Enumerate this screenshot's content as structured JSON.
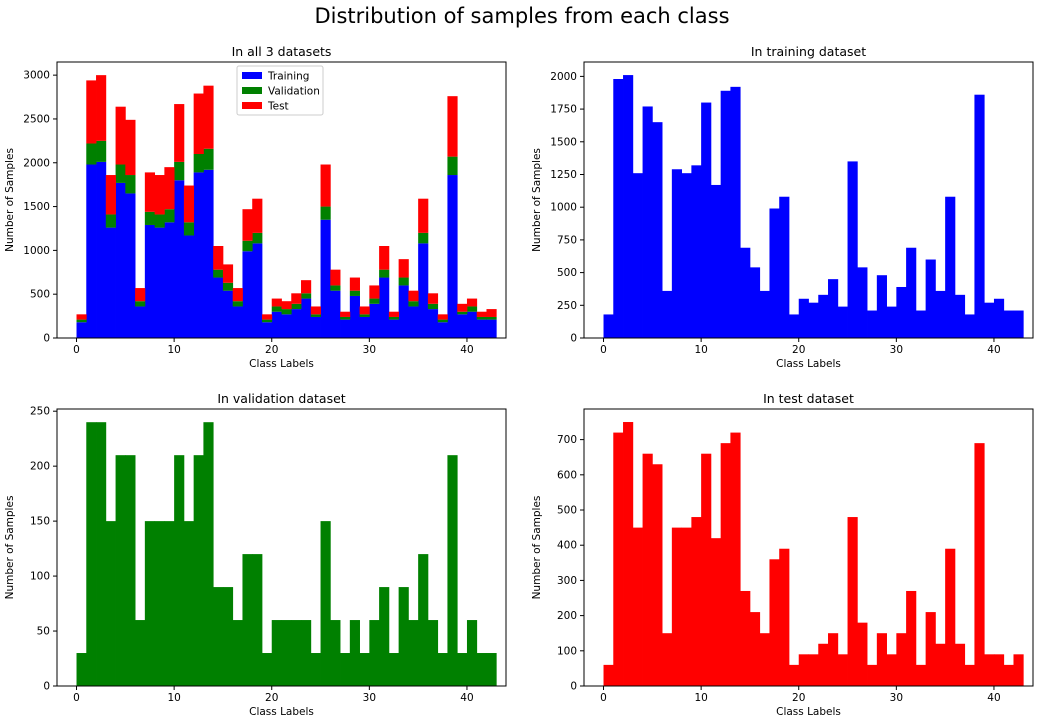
{
  "figure": {
    "suptitle": "Distribution of samples from each class"
  },
  "colors": {
    "training": "#0000ff",
    "validation": "#008000",
    "test": "#ff0000",
    "axes": "#000000",
    "background": "#ffffff"
  },
  "chart_data": [
    {
      "type": "bar",
      "stacked": true,
      "title": "In all 3 datasets",
      "xlabel": "Class Labels",
      "ylabel": "Number of Samples",
      "x": [
        0,
        1,
        2,
        3,
        4,
        5,
        6,
        7,
        8,
        9,
        10,
        11,
        12,
        13,
        14,
        15,
        16,
        17,
        18,
        19,
        20,
        21,
        22,
        23,
        24,
        25,
        26,
        27,
        28,
        29,
        30,
        31,
        32,
        33,
        34,
        35,
        36,
        37,
        38,
        39,
        40,
        41,
        42
      ],
      "xlim": [
        -2,
        44
      ],
      "ylim": [
        0,
        3150
      ],
      "xticks": [
        0,
        10,
        20,
        30,
        40
      ],
      "yticks": [
        0,
        500,
        1000,
        1500,
        2000,
        2500,
        3000
      ],
      "legend": {
        "placement": "top-center",
        "entries": [
          "Training",
          "Validation",
          "Test"
        ]
      },
      "series": [
        {
          "name": "Training",
          "color": "#0000ff",
          "values": [
            180,
            1980,
            2010,
            1260,
            1770,
            1650,
            360,
            1290,
            1260,
            1320,
            1800,
            1170,
            1890,
            1920,
            690,
            540,
            360,
            990,
            1080,
            180,
            300,
            270,
            330,
            450,
            240,
            1350,
            540,
            210,
            480,
            240,
            390,
            690,
            210,
            600,
            360,
            1080,
            330,
            180,
            1860,
            270,
            300,
            210,
            210
          ]
        },
        {
          "name": "Validation",
          "color": "#008000",
          "values": [
            30,
            240,
            240,
            150,
            210,
            210,
            60,
            150,
            150,
            150,
            210,
            150,
            210,
            240,
            90,
            90,
            60,
            120,
            120,
            30,
            60,
            60,
            60,
            60,
            30,
            150,
            60,
            30,
            60,
            30,
            60,
            90,
            30,
            90,
            60,
            120,
            60,
            30,
            210,
            30,
            60,
            30,
            30
          ]
        },
        {
          "name": "Test",
          "color": "#ff0000",
          "values": [
            60,
            720,
            750,
            450,
            660,
            630,
            150,
            450,
            450,
            480,
            660,
            420,
            690,
            720,
            270,
            210,
            150,
            360,
            390,
            60,
            90,
            90,
            120,
            150,
            90,
            480,
            180,
            60,
            150,
            90,
            150,
            270,
            60,
            210,
            120,
            390,
            120,
            60,
            690,
            90,
            90,
            60,
            90
          ]
        }
      ]
    },
    {
      "type": "bar",
      "title": "In training dataset",
      "xlabel": "Class Labels",
      "ylabel": "Number of Samples",
      "x": [
        0,
        1,
        2,
        3,
        4,
        5,
        6,
        7,
        8,
        9,
        10,
        11,
        12,
        13,
        14,
        15,
        16,
        17,
        18,
        19,
        20,
        21,
        22,
        23,
        24,
        25,
        26,
        27,
        28,
        29,
        30,
        31,
        32,
        33,
        34,
        35,
        36,
        37,
        38,
        39,
        40,
        41,
        42
      ],
      "xlim": [
        -2,
        44
      ],
      "ylim": [
        0,
        2110
      ],
      "xticks": [
        0,
        10,
        20,
        30,
        40
      ],
      "yticks": [
        0,
        250,
        500,
        750,
        1000,
        1250,
        1500,
        1750,
        2000
      ],
      "series": [
        {
          "name": "Training",
          "color": "#0000ff",
          "values": [
            180,
            1980,
            2010,
            1260,
            1770,
            1650,
            360,
            1290,
            1260,
            1320,
            1800,
            1170,
            1890,
            1920,
            690,
            540,
            360,
            990,
            1080,
            180,
            300,
            270,
            330,
            450,
            240,
            1350,
            540,
            210,
            480,
            240,
            390,
            690,
            210,
            600,
            360,
            1080,
            330,
            180,
            1860,
            270,
            300,
            210,
            210
          ]
        }
      ]
    },
    {
      "type": "bar",
      "title": "In validation dataset",
      "xlabel": "Class Labels",
      "ylabel": "Number of Samples",
      "x": [
        0,
        1,
        2,
        3,
        4,
        5,
        6,
        7,
        8,
        9,
        10,
        11,
        12,
        13,
        14,
        15,
        16,
        17,
        18,
        19,
        20,
        21,
        22,
        23,
        24,
        25,
        26,
        27,
        28,
        29,
        30,
        31,
        32,
        33,
        34,
        35,
        36,
        37,
        38,
        39,
        40,
        41,
        42
      ],
      "xlim": [
        -2,
        44
      ],
      "ylim": [
        0,
        252
      ],
      "xticks": [
        0,
        10,
        20,
        30,
        40
      ],
      "yticks": [
        0,
        50,
        100,
        150,
        200,
        250
      ],
      "series": [
        {
          "name": "Validation",
          "color": "#008000",
          "values": [
            30,
            240,
            240,
            150,
            210,
            210,
            60,
            150,
            150,
            150,
            210,
            150,
            210,
            240,
            90,
            90,
            60,
            120,
            120,
            30,
            60,
            60,
            60,
            60,
            30,
            150,
            60,
            30,
            60,
            30,
            60,
            90,
            30,
            90,
            60,
            120,
            60,
            30,
            210,
            30,
            60,
            30,
            30
          ]
        }
      ]
    },
    {
      "type": "bar",
      "title": "In test dataset",
      "xlabel": "Class Labels",
      "ylabel": "Number of Samples",
      "x": [
        0,
        1,
        2,
        3,
        4,
        5,
        6,
        7,
        8,
        9,
        10,
        11,
        12,
        13,
        14,
        15,
        16,
        17,
        18,
        19,
        20,
        21,
        22,
        23,
        24,
        25,
        26,
        27,
        28,
        29,
        30,
        31,
        32,
        33,
        34,
        35,
        36,
        37,
        38,
        39,
        40,
        41,
        42
      ],
      "xlim": [
        -2,
        44
      ],
      "ylim": [
        0,
        787
      ],
      "xticks": [
        0,
        10,
        20,
        30,
        40
      ],
      "yticks": [
        0,
        100,
        200,
        300,
        400,
        500,
        600,
        700
      ],
      "series": [
        {
          "name": "Test",
          "color": "#ff0000",
          "values": [
            60,
            720,
            750,
            450,
            660,
            630,
            150,
            450,
            450,
            480,
            660,
            420,
            690,
            720,
            270,
            210,
            150,
            360,
            390,
            60,
            90,
            90,
            120,
            150,
            90,
            480,
            180,
            60,
            150,
            90,
            150,
            270,
            60,
            210,
            120,
            390,
            120,
            60,
            690,
            90,
            90,
            60,
            90
          ]
        }
      ]
    }
  ]
}
